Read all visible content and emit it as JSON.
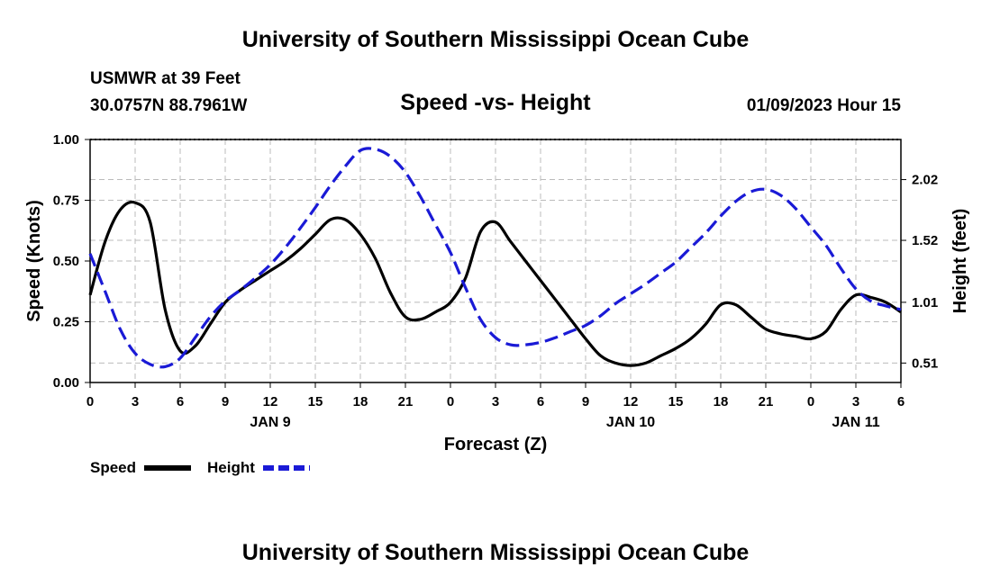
{
  "header": {
    "title": "University of Southern Mississippi Ocean Cube",
    "station": "USMWR at 39 Feet",
    "coords": "30.0757N  88.7961W",
    "subtitle": "Speed -vs- Height",
    "datetime": "01/09/2023 Hour 15"
  },
  "footer": {
    "title": "University of Southern Mississippi Ocean Cube"
  },
  "legend": {
    "speed_label": "Speed",
    "height_label": "Height"
  },
  "colors": {
    "speed": "#000000",
    "height": "#1a1ad6",
    "grid": "#bbbbbb"
  },
  "chart_data": {
    "type": "line",
    "title": "Speed -vs- Height",
    "xlabel": "Forecast (Z)",
    "ylabel_left": "Speed (Knots)",
    "ylabel_right": "Height (feet)",
    "x_range_hours": [
      0,
      54
    ],
    "x_ticks": [
      {
        "h": 0,
        "label": "0"
      },
      {
        "h": 3,
        "label": "3"
      },
      {
        "h": 6,
        "label": "6"
      },
      {
        "h": 9,
        "label": "9"
      },
      {
        "h": 12,
        "label": "12"
      },
      {
        "h": 15,
        "label": "15"
      },
      {
        "h": 18,
        "label": "18"
      },
      {
        "h": 21,
        "label": "21"
      },
      {
        "h": 24,
        "label": "0"
      },
      {
        "h": 27,
        "label": "3"
      },
      {
        "h": 30,
        "label": "6"
      },
      {
        "h": 33,
        "label": "9"
      },
      {
        "h": 36,
        "label": "12"
      },
      {
        "h": 39,
        "label": "15"
      },
      {
        "h": 42,
        "label": "18"
      },
      {
        "h": 45,
        "label": "21"
      },
      {
        "h": 48,
        "label": "0"
      },
      {
        "h": 51,
        "label": "3"
      },
      {
        "h": 54,
        "label": "6"
      }
    ],
    "date_labels": [
      {
        "h": 12,
        "label": "JAN 9"
      },
      {
        "h": 36,
        "label": "JAN 10"
      },
      {
        "h": 51,
        "label": "JAN 11"
      }
    ],
    "ylim_left": [
      0,
      1.0
    ],
    "yticks_left": [
      {
        "v": 0.0,
        "label": "0.00"
      },
      {
        "v": 0.25,
        "label": "0.25"
      },
      {
        "v": 0.5,
        "label": "0.50"
      },
      {
        "v": 0.75,
        "label": "0.75"
      },
      {
        "v": 1.0,
        "label": "1.00"
      }
    ],
    "ylim_right": [
      0.35,
      2.35
    ],
    "yticks_right": [
      {
        "v": 0.51,
        "label": "0.51"
      },
      {
        "v": 1.01,
        "label": "1.01"
      },
      {
        "v": 1.52,
        "label": "1.52"
      },
      {
        "v": 2.02,
        "label": "2.02"
      }
    ],
    "series": [
      {
        "name": "Speed",
        "axis": "left",
        "style": "solid",
        "x": [
          0,
          1,
          2,
          3,
          4,
          5,
          6,
          7,
          8,
          9,
          10,
          11,
          12,
          13,
          14,
          15,
          16,
          17,
          18,
          19,
          20,
          21,
          22,
          23,
          24,
          25,
          26,
          27,
          28,
          29,
          30,
          31,
          32,
          33,
          34,
          35,
          36,
          37,
          38,
          39,
          40,
          41,
          42,
          43,
          44,
          45,
          46,
          47,
          48,
          49,
          50,
          51,
          52,
          53,
          54
        ],
        "values": [
          0.36,
          0.58,
          0.71,
          0.74,
          0.66,
          0.3,
          0.13,
          0.15,
          0.24,
          0.33,
          0.38,
          0.42,
          0.46,
          0.5,
          0.55,
          0.61,
          0.67,
          0.67,
          0.61,
          0.51,
          0.37,
          0.27,
          0.26,
          0.29,
          0.33,
          0.43,
          0.62,
          0.66,
          0.58,
          0.5,
          0.42,
          0.34,
          0.26,
          0.18,
          0.11,
          0.08,
          0.07,
          0.08,
          0.11,
          0.14,
          0.18,
          0.24,
          0.32,
          0.32,
          0.27,
          0.22,
          0.2,
          0.19,
          0.18,
          0.21,
          0.3,
          0.36,
          0.35,
          0.33,
          0.29
        ]
      },
      {
        "name": "Height",
        "axis": "right",
        "style": "dashed",
        "x": [
          0,
          1,
          2,
          3,
          4,
          5,
          6,
          7,
          8,
          9,
          10,
          11,
          12,
          13,
          14,
          15,
          16,
          17,
          18,
          19,
          20,
          21,
          22,
          23,
          24,
          25,
          26,
          27,
          28,
          29,
          30,
          31,
          32,
          33,
          34,
          35,
          36,
          37,
          38,
          39,
          40,
          41,
          42,
          43,
          44,
          45,
          46,
          47,
          48,
          49,
          50,
          51,
          52,
          53,
          54
        ],
        "values": [
          1.41,
          1.1,
          0.79,
          0.59,
          0.5,
          0.48,
          0.55,
          0.72,
          0.89,
          1.02,
          1.11,
          1.21,
          1.32,
          1.46,
          1.62,
          1.79,
          1.97,
          2.13,
          2.26,
          2.27,
          2.21,
          2.08,
          1.88,
          1.65,
          1.42,
          1.13,
          0.87,
          0.72,
          0.66,
          0.66,
          0.68,
          0.72,
          0.77,
          0.82,
          0.9,
          1.0,
          1.08,
          1.16,
          1.25,
          1.34,
          1.46,
          1.58,
          1.72,
          1.84,
          1.92,
          1.94,
          1.89,
          1.78,
          1.63,
          1.48,
          1.29,
          1.12,
          1.02,
          0.98,
          0.95
        ]
      }
    ]
  }
}
